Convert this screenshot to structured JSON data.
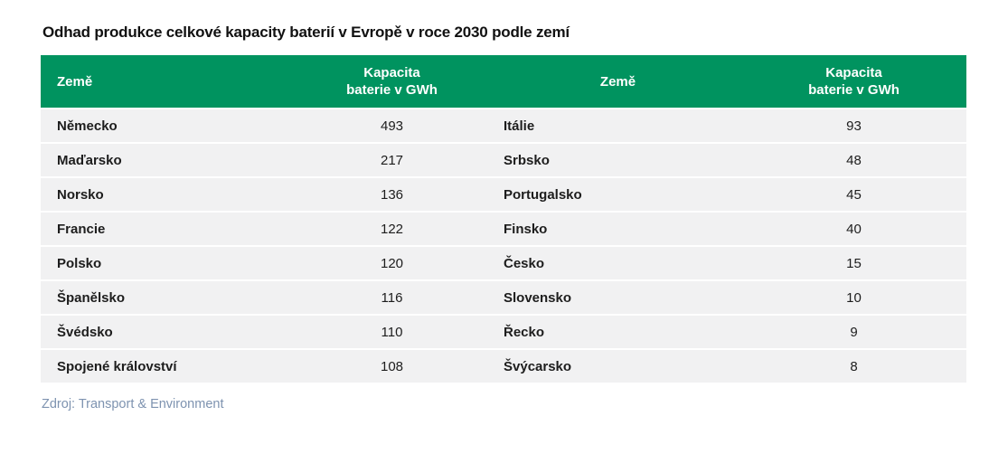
{
  "colors": {
    "header_bg": "#00935f",
    "header_text": "#ffffff",
    "row_bg": "#f1f1f2",
    "body_text": "#1d1d1d",
    "source_text": "#7e93b0",
    "page_bg": "#ffffff"
  },
  "chart_data": {
    "type": "table",
    "title": "Odhad produkce celkové kapacity baterií v Evropě v roce 2030 podle zemí",
    "unit": "GWh",
    "columns": [
      "Země",
      "Kapacita baterie v GWh",
      "Země",
      "Kapacita baterie v GWh"
    ],
    "header": {
      "col1": "Země",
      "col2": "Kapacita\nbaterie v GWh",
      "col3": "Země",
      "col4": "Kapacita\nbaterie v GWh"
    },
    "rows": [
      {
        "country_left": "Německo",
        "capacity_left": "493",
        "country_right": "Itálie",
        "capacity_right": "93"
      },
      {
        "country_left": "Maďarsko",
        "capacity_left": "217",
        "country_right": "Srbsko",
        "capacity_right": "48"
      },
      {
        "country_left": "Norsko",
        "capacity_left": "136",
        "country_right": "Portugalsko",
        "capacity_right": "45"
      },
      {
        "country_left": "Francie",
        "capacity_left": "122",
        "country_right": "Finsko",
        "capacity_right": "40"
      },
      {
        "country_left": "Polsko",
        "capacity_left": "120",
        "country_right": "Česko",
        "capacity_right": "15"
      },
      {
        "country_left": "Španělsko",
        "capacity_left": "116",
        "country_right": "Slovensko",
        "capacity_right": "10"
      },
      {
        "country_left": "Švédsko",
        "capacity_left": "110",
        "country_right": "Řecko",
        "capacity_right": "9"
      },
      {
        "country_left": "Spojené království",
        "capacity_left": "108",
        "country_right": "Švýcarsko",
        "capacity_right": "8"
      }
    ],
    "source": "Zdroj: Transport & Environment"
  }
}
